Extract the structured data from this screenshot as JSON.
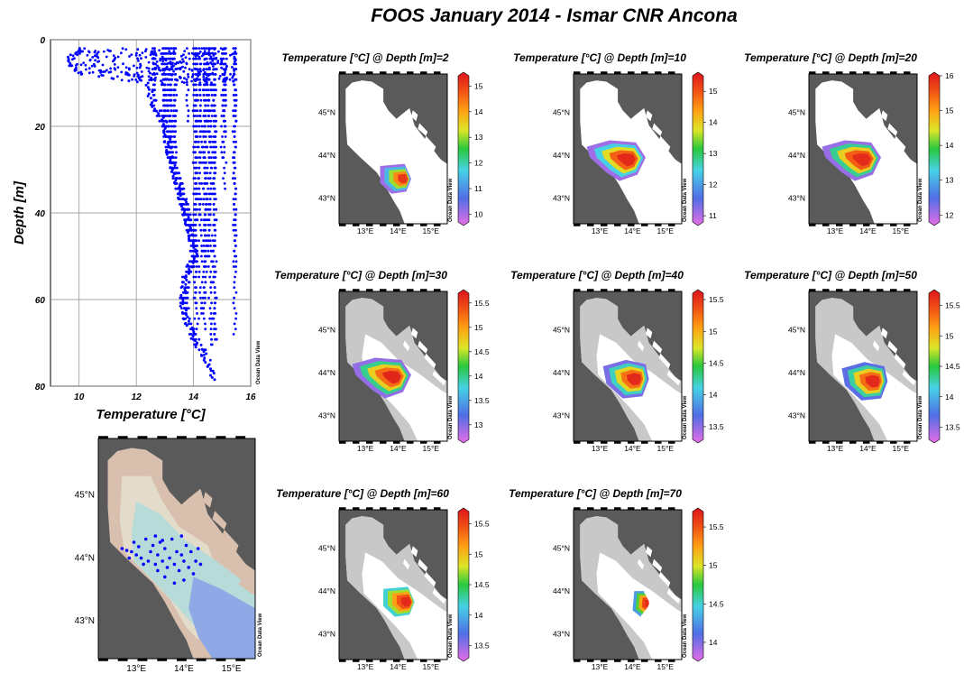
{
  "title": "FOOS January 2014 - Ismar CNR Ancona",
  "watermark": "Ocean Data View",
  "chart_data": [
    {
      "type": "scatter",
      "name": "profiles",
      "xlabel": "Temperature [°C]",
      "ylabel": "Depth [m]",
      "xlim": [
        9,
        16
      ],
      "ylim": [
        80,
        0
      ],
      "xticks": [
        "10",
        "12",
        "14",
        "16"
      ],
      "yticks": [
        "0",
        "20",
        "40",
        "60",
        "80"
      ],
      "grid": true,
      "marker_color": "#0000ff",
      "envelope": {
        "depth": [
          2,
          5,
          6,
          8,
          10,
          15,
          20,
          25,
          30,
          35,
          40,
          45,
          50,
          55,
          60,
          65,
          70,
          75,
          79
        ],
        "tmin": [
          10.0,
          9.4,
          9.6,
          10.0,
          12.2,
          12.5,
          12.9,
          13.0,
          13.2,
          13.4,
          13.6,
          13.8,
          13.9,
          13.6,
          13.5,
          13.6,
          14.0,
          14.4,
          14.6
        ],
        "tmax": [
          15.5,
          15.5,
          15.5,
          15.5,
          15.5,
          15.5,
          15.5,
          15.5,
          15.5,
          15.5,
          15.5,
          15.5,
          15.5,
          15.5,
          15.5,
          15.5,
          15.5,
          15.4,
          15.3
        ]
      }
    },
    {
      "type": "map",
      "name": "station-map",
      "lat_ticks": [
        "45°N",
        "44°N",
        "43°N"
      ],
      "lon_ticks": [
        "13°E",
        "14°E",
        "15°E"
      ],
      "stations": [
        [
          12.7,
          44.15
        ],
        [
          12.8,
          44.12
        ],
        [
          12.9,
          44.1
        ],
        [
          13.0,
          44.05
        ],
        [
          13.1,
          44.0
        ],
        [
          13.05,
          44.18
        ],
        [
          13.25,
          43.95
        ],
        [
          13.3,
          44.1
        ],
        [
          13.35,
          44.2
        ],
        [
          13.4,
          43.9
        ],
        [
          13.45,
          44.05
        ],
        [
          13.5,
          44.25
        ],
        [
          13.55,
          43.95
        ],
        [
          13.6,
          44.15
        ],
        [
          13.65,
          43.85
        ],
        [
          13.7,
          44.0
        ],
        [
          13.75,
          44.3
        ],
        [
          13.8,
          43.9
        ],
        [
          13.85,
          44.1
        ],
        [
          13.9,
          43.8
        ],
        [
          13.95,
          44.05
        ],
        [
          14.0,
          43.95
        ],
        [
          14.05,
          44.2
        ],
        [
          14.1,
          43.85
        ],
        [
          14.15,
          44.1
        ],
        [
          14.2,
          43.75
        ],
        [
          14.25,
          43.95
        ],
        [
          14.3,
          44.15
        ],
        [
          13.55,
          44.28
        ],
        [
          13.4,
          44.35
        ],
        [
          13.2,
          44.3
        ],
        [
          12.95,
          44.25
        ],
        [
          13.15,
          43.9
        ],
        [
          13.6,
          43.7
        ],
        [
          13.8,
          43.6
        ],
        [
          14.0,
          43.65
        ],
        [
          12.85,
          44.0
        ],
        [
          13.45,
          43.8
        ],
        [
          14.35,
          43.9
        ],
        [
          13.95,
          44.35
        ]
      ]
    },
    {
      "type": "heatmap",
      "title": "Temperature [°C] @ Depth [m]=2",
      "depth": 2,
      "colorbar": [
        "15",
        "14",
        "13",
        "12",
        "11",
        "10"
      ],
      "value_range": [
        9.7,
        15.4
      ],
      "field": {
        "center": [
          13.9,
          43.45
        ],
        "shape": "small",
        "values": [
          10.2,
          11.5,
          13.0,
          14.2,
          15.0
        ]
      }
    },
    {
      "type": "heatmap",
      "title": "Temperature [°C] @ Depth [m]=10",
      "depth": 10,
      "colorbar": [
        "15",
        "14",
        "13",
        "12",
        "11"
      ],
      "value_range": [
        10.8,
        15.5
      ],
      "field": {
        "center": [
          13.6,
          43.9
        ],
        "shape": "wide",
        "values": [
          11.2,
          12.5,
          13.8,
          14.8,
          15.3
        ]
      }
    },
    {
      "type": "heatmap",
      "title": "Temperature [°C] @ Depth [m]=20",
      "depth": 20,
      "colorbar": [
        "16",
        "15",
        "14",
        "13",
        "12"
      ],
      "value_range": [
        11.8,
        16.0
      ],
      "field": {
        "center": [
          13.6,
          43.9
        ],
        "shape": "wide",
        "values": [
          12.2,
          13.6,
          14.6,
          15.4,
          15.8
        ]
      }
    },
    {
      "type": "heatmap",
      "title": "Temperature [°C] @ Depth [m]=30",
      "depth": 30,
      "colorbar": [
        "15.5",
        "15",
        "14.5",
        "14",
        "13.5",
        "13"
      ],
      "value_range": [
        12.7,
        15.7
      ],
      "field": {
        "center": [
          13.6,
          43.9
        ],
        "shape": "wide",
        "values": [
          13.0,
          14.0,
          14.7,
          15.2,
          15.6
        ]
      }
    },
    {
      "type": "heatmap",
      "title": "Temperature [°C] @ Depth [m]=40",
      "depth": 40,
      "colorbar": [
        "15.5",
        "15",
        "14.5",
        "14",
        "13.5"
      ],
      "value_range": [
        13.3,
        15.6
      ],
      "field": {
        "center": [
          13.8,
          43.85
        ],
        "shape": "mid",
        "values": [
          13.6,
          14.2,
          14.8,
          15.2,
          15.5
        ]
      }
    },
    {
      "type": "heatmap",
      "title": "Temperature [°C] @ Depth [m]=50",
      "depth": 50,
      "colorbar": [
        "15.5",
        "15",
        "14.5",
        "14",
        "13.5"
      ],
      "value_range": [
        13.3,
        15.7
      ],
      "field": {
        "center": [
          13.9,
          43.8
        ],
        "shape": "mid",
        "values": [
          13.7,
          14.3,
          14.9,
          15.3,
          15.6
        ]
      }
    },
    {
      "type": "heatmap",
      "title": "Temperature [°C] @ Depth [m]=60",
      "depth": 60,
      "colorbar": [
        "15.5",
        "15",
        "14.5",
        "14",
        "13.5"
      ],
      "value_range": [
        13.3,
        15.7
      ],
      "field": {
        "center": [
          14.0,
          43.75
        ],
        "shape": "small",
        "values": [
          14.2,
          14.7,
          15.1,
          15.4,
          15.6
        ]
      }
    },
    {
      "type": "heatmap",
      "title": "Temperature [°C] @ Depth [m]=70",
      "depth": 70,
      "colorbar": [
        "15.5",
        "15",
        "14.5",
        "14"
      ],
      "value_range": [
        13.8,
        15.7
      ],
      "field": {
        "center": [
          14.2,
          43.7
        ],
        "shape": "tiny",
        "values": [
          14.3,
          14.8,
          15.2,
          15.5,
          15.6
        ]
      }
    }
  ]
}
